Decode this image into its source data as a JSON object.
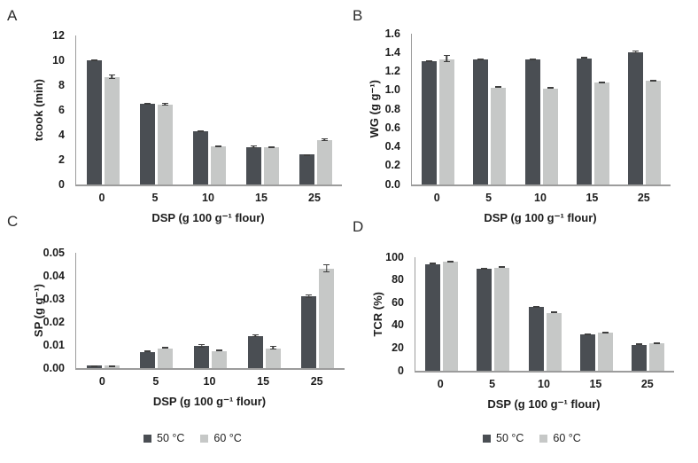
{
  "figure": {
    "colors": {
      "bar_50c": "#4a4e53",
      "bar_60c": "#c6c8c7",
      "error_bar": "#3f3f3f",
      "axis_line": "#9c9c9c",
      "text": "#1d1d1d",
      "background": "#ffffff"
    }
  },
  "legends": [
    {
      "items": [
        {
          "label": "50 °C"
        },
        {
          "label": "60 °C"
        }
      ]
    },
    {
      "items": [
        {
          "label": "50 °C"
        },
        {
          "label": "60 °C"
        }
      ]
    }
  ],
  "chart_data": [
    {
      "panel": "A",
      "type": "bar",
      "title": "",
      "xlabel": "DSP (g 100 g⁻¹ flour)",
      "ylabel": "tcook (min)",
      "ylim": [
        0,
        12
      ],
      "grid": false,
      "yticks": [
        {
          "v": 0,
          "label": "0"
        },
        {
          "v": 2,
          "label": "2"
        },
        {
          "v": 4,
          "label": "4"
        },
        {
          "v": 6,
          "label": "6"
        },
        {
          "v": 8,
          "label": "8"
        },
        {
          "v": 10,
          "label": "10"
        },
        {
          "v": 12,
          "label": "12"
        }
      ],
      "categories": [
        "0",
        "5",
        "10",
        "15",
        "25"
      ],
      "series": [
        {
          "name": "50 °C",
          "values": [
            10.0,
            6.5,
            4.3,
            3.0,
            2.4
          ],
          "errors": [
            0.08,
            0.1,
            0.08,
            0.15,
            0.06
          ]
        },
        {
          "name": "60 °C",
          "values": [
            8.65,
            6.4,
            3.1,
            3.0,
            3.6
          ],
          "errors": [
            0.2,
            0.15,
            0.06,
            0.06,
            0.15
          ]
        }
      ]
    },
    {
      "panel": "B",
      "type": "bar",
      "title": "",
      "xlabel": "DSP (g 100 g⁻¹ flour)",
      "ylabel": "WG (g g⁻¹)",
      "ylim": [
        0,
        1.6
      ],
      "grid": false,
      "yticks": [
        {
          "v": 0,
          "label": "0.0"
        },
        {
          "v": 0.2,
          "label": "0.2"
        },
        {
          "v": 0.4,
          "label": "0.4"
        },
        {
          "v": 0.6,
          "label": "0.6"
        },
        {
          "v": 0.8,
          "label": "0.8"
        },
        {
          "v": 1.0,
          "label": "1.0"
        },
        {
          "v": 1.2,
          "label": "1.2"
        },
        {
          "v": 1.4,
          "label": "1.4"
        },
        {
          "v": 1.6,
          "label": "1.6"
        }
      ],
      "categories": [
        "0",
        "5",
        "10",
        "15",
        "25"
      ],
      "series": [
        {
          "name": "50 °C",
          "values": [
            1.31,
            1.33,
            1.33,
            1.34,
            1.4
          ],
          "errors": [
            0.01,
            0.008,
            0.008,
            0.012,
            0.02
          ]
        },
        {
          "name": "60 °C",
          "values": [
            1.33,
            1.03,
            1.02,
            1.08,
            1.1
          ],
          "errors": [
            0.04,
            0.012,
            0.012,
            0.012,
            0.012
          ]
        }
      ]
    },
    {
      "panel": "C",
      "type": "bar",
      "title": "",
      "xlabel": "DSP (g 100 g⁻¹ flour)",
      "ylabel": "SP (g g⁻¹)",
      "ylim": [
        0,
        0.05
      ],
      "grid": false,
      "yticks": [
        {
          "v": 0,
          "label": "0.00"
        },
        {
          "v": 0.01,
          "label": "0.01"
        },
        {
          "v": 0.02,
          "label": "0.02"
        },
        {
          "v": 0.03,
          "label": "0.03"
        },
        {
          "v": 0.04,
          "label": "0.04"
        },
        {
          "v": 0.05,
          "label": "0.05"
        }
      ],
      "categories": [
        "0",
        "5",
        "10",
        "15",
        "25"
      ],
      "series": [
        {
          "name": "50 °C",
          "values": [
            0.001,
            0.007,
            0.0095,
            0.014,
            0.031
          ],
          "errors": [
            0.0003,
            0.0006,
            0.001,
            0.0008,
            0.001
          ]
        },
        {
          "name": "60 °C",
          "values": [
            0.001,
            0.0085,
            0.0075,
            0.0085,
            0.043
          ],
          "errors": [
            0.0003,
            0.0006,
            0.0004,
            0.001,
            0.002
          ]
        }
      ]
    },
    {
      "panel": "D",
      "type": "bar",
      "title": "",
      "xlabel": "DSP (g 100 g⁻¹ flour)",
      "ylabel": "TCR (%)",
      "ylim": [
        0,
        100
      ],
      "grid": false,
      "yticks": [
        {
          "v": 0,
          "label": "0"
        },
        {
          "v": 20,
          "label": "20"
        },
        {
          "v": 40,
          "label": "40"
        },
        {
          "v": 60,
          "label": "60"
        },
        {
          "v": 80,
          "label": "80"
        },
        {
          "v": 100,
          "label": "100"
        }
      ],
      "categories": [
        "0",
        "5",
        "10",
        "15",
        "25"
      ],
      "series": [
        {
          "name": "50 °C",
          "values": [
            94,
            90,
            56,
            32,
            23
          ],
          "errors": [
            1,
            1,
            1,
            0.8,
            1
          ]
        },
        {
          "name": "60 °C",
          "values": [
            96,
            91,
            51,
            33.5,
            24
          ],
          "errors": [
            1,
            1,
            1,
            0.8,
            1
          ]
        }
      ]
    }
  ]
}
